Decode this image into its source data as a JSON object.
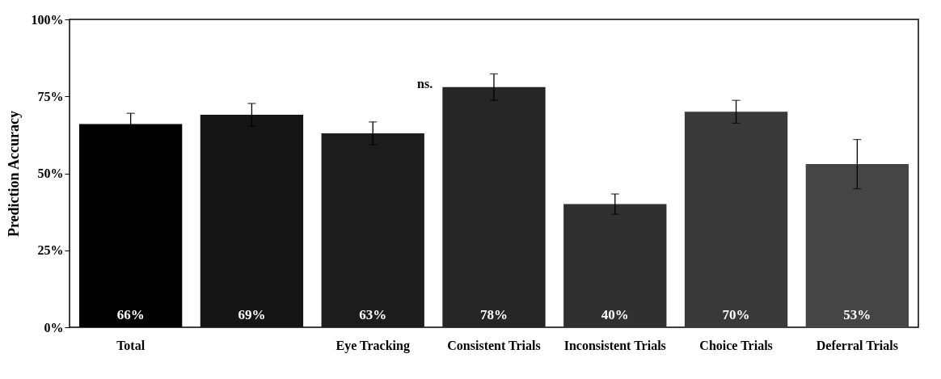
{
  "chart_data": {
    "type": "bar",
    "ylabel": "Prediction Accuracy",
    "categories": [
      "Total",
      null,
      "Eye Tracking",
      "Consistent Trials",
      "Inconsistent Trials",
      "Choice Trials",
      "Deferral Trials"
    ],
    "values": [
      66,
      69,
      63,
      78,
      40,
      70,
      53
    ],
    "colors": [
      "#000000",
      "#151515",
      "#1c1c1c",
      "#262626",
      "#303030",
      "#393939",
      "#454545"
    ],
    "errors": [
      3.5,
      3.7,
      3.7,
      4.3,
      3.3,
      3.7,
      8
    ],
    "value_labels": [
      "66%",
      "69%",
      "63%",
      "78%",
      "40%",
      "70%",
      "53%"
    ],
    "ylim": [
      0,
      100
    ],
    "yticks": [
      {
        "value": 0,
        "label": "0%"
      },
      {
        "value": 25,
        "label": "25%"
      },
      {
        "value": 50,
        "label": "50%"
      },
      {
        "value": 75,
        "label": "75%"
      },
      {
        "value": 100,
        "label": "100%"
      }
    ],
    "annotations": [
      "ns."
    ],
    "grid": false
  }
}
